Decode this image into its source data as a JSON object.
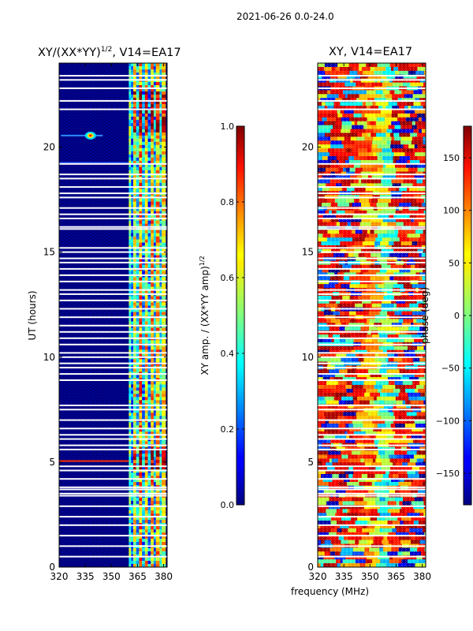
{
  "suptitle": "2021-06-26 0.0-24.0",
  "chart_data": [
    {
      "type": "heatmap",
      "title": "XY/(XX*YY)",
      "title_sup": "1/2",
      "title_suffix": ", V14=EA17",
      "xlabel": "",
      "ylabel": "UT (hours)",
      "xlim": [
        320,
        382
      ],
      "ylim": [
        0,
        24
      ],
      "xticks": [
        320,
        335,
        350,
        365,
        380
      ],
      "yticks": [
        0,
        5,
        10,
        15,
        20
      ],
      "signal_band_mhz": [
        360,
        381
      ],
      "flagged_hours": [
        0.5,
        1.0,
        1.5,
        2.0,
        2.4,
        2.9,
        3.4,
        3.5,
        3.7,
        3.8,
        4.2,
        4.6,
        4.8,
        5.6,
        5.8,
        6.1,
        6.3,
        6.6,
        7.0,
        7.5,
        7.7,
        8.9,
        9.2,
        9.5,
        9.7,
        10.0,
        10.2,
        10.6,
        10.9,
        11.2,
        11.5,
        11.9,
        12.3,
        12.7,
        13.0,
        13.2,
        13.6,
        13.9,
        14.2,
        14.5,
        14.7,
        15.0,
        15.2,
        16.1,
        16.2,
        16.6,
        16.8,
        17.1,
        17.6,
        17.8,
        18.1,
        18.5,
        18.7,
        19.2,
        21.8,
        22.2,
        22.8,
        23.2,
        23.4
      ]
    },
    {
      "type": "heatmap",
      "title": "XY, V14=EA17",
      "xlabel": "frequency (MHz)",
      "ylabel": "",
      "xlim": [
        320,
        382
      ],
      "ylim": [
        0,
        24
      ],
      "xticks": [
        320,
        335,
        350,
        365,
        380
      ],
      "yticks": [
        0,
        5,
        10,
        15,
        20
      ]
    }
  ],
  "colorbars": [
    {
      "label": "XY amp. / (XX*YY amp)",
      "label_sup": "1/2",
      "min": 0.0,
      "max": 1.0,
      "ticks": [
        "0.0",
        "0.2",
        "0.4",
        "0.6",
        "0.8",
        "1.0"
      ]
    },
    {
      "label": "phase (deg)",
      "min": -180,
      "max": 180,
      "ticks": [
        "150",
        "100",
        "50",
        "0",
        "−50",
        "−100",
        "−150"
      ]
    }
  ]
}
